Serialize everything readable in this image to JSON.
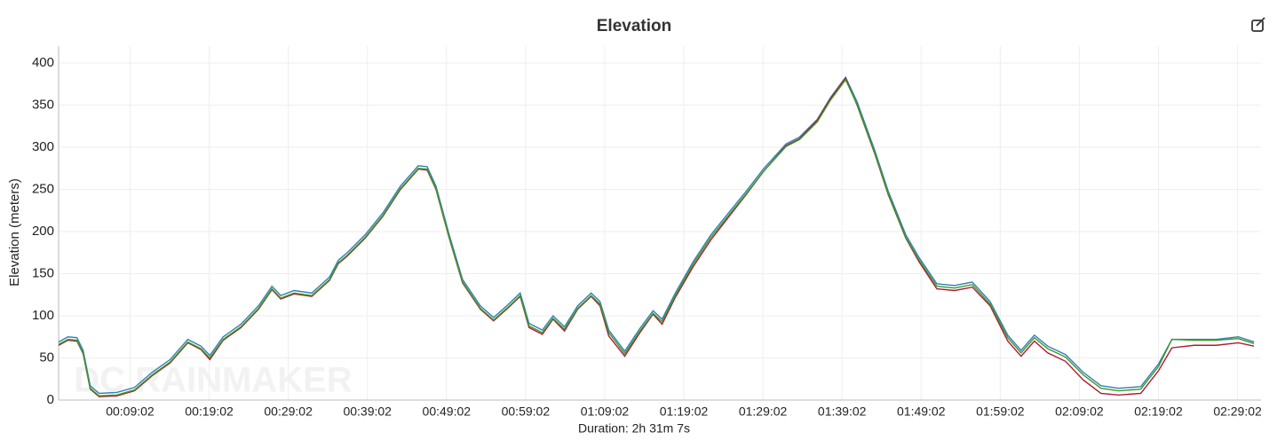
{
  "chart_data": {
    "type": "line",
    "title": "Elevation",
    "x_label": "Duration: 2h 31m 7s",
    "y_label": "Elevation (meters)",
    "watermark": "DC RAINMAKER",
    "x": [
      0,
      71,
      139,
      186,
      240,
      307,
      441,
      576,
      710,
      845,
      980,
      1080,
      1147,
      1248,
      1383,
      1517,
      1618,
      1685,
      1786,
      1920,
      2055,
      2122,
      2190,
      2324,
      2459,
      2593,
      2728,
      2795,
      2862,
      2963,
      3064,
      3198,
      3299,
      3400,
      3501,
      3568,
      3669,
      3750,
      3837,
      3938,
      4039,
      4106,
      4173,
      4294,
      4409,
      4509,
      4577,
      4678,
      4812,
      4947,
      5081,
      5216,
      5350,
      5518,
      5619,
      5754,
      5855,
      5969,
      6056,
      6191,
      6292,
      6426,
      6527,
      6661,
      6796,
      6930,
      7065,
      7199,
      7300,
      7401,
      7502,
      7637,
      7771,
      7906,
      8040,
      8208,
      8343,
      8444,
      8612,
      8780,
      8948,
      9067
    ],
    "series": [
      {
        "color": "#2e7fb8",
        "values": [
          69,
          75,
          74,
          59,
          17,
          8,
          9,
          15,
          33,
          48,
          72,
          64,
          53,
          75,
          90,
          112,
          135,
          124,
          130,
          127,
          146,
          166,
          175,
          196,
          222,
          254,
          278,
          277,
          254,
          196,
          143,
          112,
          98,
          112,
          127,
          91,
          83,
          100,
          87,
          112,
          127,
          117,
          83,
          58,
          85,
          106,
          96,
          127,
          164,
          196,
          222,
          248,
          275,
          304,
          312,
          333,
          359,
          383,
          354,
          296,
          248,
          196,
          169,
          138,
          136,
          140,
          117,
          77,
          59,
          77,
          64,
          54,
          33,
          17,
          14,
          16,
          43,
          72,
          72,
          72,
          75,
          69
        ]
      },
      {
        "color": "#b0173a",
        "values": [
          65,
          71,
          70,
          55,
          13,
          4,
          5,
          11,
          29,
          44,
          68,
          60,
          48,
          71,
          86,
          108,
          131,
          120,
          126,
          123,
          142,
          162,
          171,
          192,
          218,
          250,
          274,
          273,
          250,
          192,
          139,
          108,
          94,
          108,
          123,
          86,
          78,
          96,
          82,
          108,
          123,
          112,
          76,
          52,
          80,
          102,
          90,
          122,
          158,
          190,
          217,
          244,
          272,
          302,
          310,
          332,
          358,
          382,
          350,
          292,
          244,
          192,
          164,
          132,
          130,
          134,
          112,
          70,
          52,
          70,
          56,
          46,
          24,
          8,
          6,
          8,
          35,
          62,
          65,
          65,
          68,
          64
        ]
      },
      {
        "color": "#3a9a22",
        "values": [
          66,
          72,
          71,
          56,
          14,
          5,
          6,
          12,
          30,
          45,
          69,
          61,
          50,
          72,
          87,
          109,
          132,
          121,
          127,
          124,
          143,
          163,
          172,
          193,
          219,
          251,
          275,
          274,
          251,
          193,
          140,
          109,
          95,
          109,
          124,
          88,
          80,
          97,
          84,
          109,
          124,
          114,
          80,
          55,
          82,
          103,
          93,
          124,
          161,
          193,
          219,
          245,
          272,
          301,
          309,
          330,
          356,
          380,
          351,
          293,
          245,
          193,
          166,
          135,
          133,
          137,
          114,
          74,
          56,
          74,
          61,
          51,
          30,
          14,
          11,
          13,
          40,
          72,
          71,
          71,
          73,
          67
        ]
      }
    ],
    "xlim": [
      0,
      9120
    ],
    "xticks": [
      {
        "value": 542,
        "label": "00:09:02"
      },
      {
        "value": 1142,
        "label": "00:19:02"
      },
      {
        "value": 1742,
        "label": "00:29:02"
      },
      {
        "value": 2342,
        "label": "00:39:02"
      },
      {
        "value": 2942,
        "label": "00:49:02"
      },
      {
        "value": 3542,
        "label": "00:59:02"
      },
      {
        "value": 4142,
        "label": "01:09:02"
      },
      {
        "value": 4742,
        "label": "01:19:02"
      },
      {
        "value": 5342,
        "label": "01:29:02"
      },
      {
        "value": 5942,
        "label": "01:39:02"
      },
      {
        "value": 6542,
        "label": "01:49:02"
      },
      {
        "value": 7142,
        "label": "01:59:02"
      },
      {
        "value": 7742,
        "label": "02:09:02"
      },
      {
        "value": 8342,
        "label": "02:19:02"
      },
      {
        "value": 8942,
        "label": "02:29:02"
      }
    ],
    "ylim": [
      0,
      420
    ],
    "yticks": [
      0,
      50,
      100,
      150,
      200,
      250,
      300,
      350,
      400
    ],
    "grid": true
  }
}
